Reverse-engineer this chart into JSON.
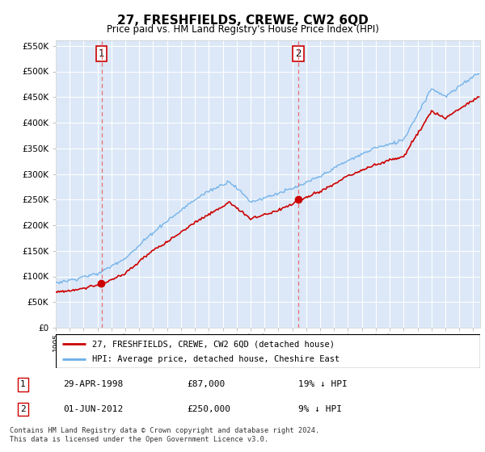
{
  "title": "27, FRESHFIELDS, CREWE, CW2 6QD",
  "subtitle": "Price paid vs. HM Land Registry's House Price Index (HPI)",
  "hpi_label": "HPI: Average price, detached house, Cheshire East",
  "property_label": "27, FRESHFIELDS, CREWE, CW2 6QD (detached house)",
  "sale1_date": "29-APR-1998",
  "sale1_price": 87000,
  "sale1_note": "19% ↓ HPI",
  "sale2_date": "01-JUN-2012",
  "sale2_price": 250000,
  "sale2_note": "9% ↓ HPI",
  "sale1_year": 1998.29,
  "sale2_year": 2012.42,
  "ylim_min": 0,
  "ylim_max": 560000,
  "xlim_min": 1995,
  "xlim_max": 2025.5,
  "background_color": "#dce8f7",
  "fig_bg": "#ffffff",
  "hpi_color": "#6aaee8",
  "property_color": "#cc0000",
  "vline_color": "#e87070",
  "grid_color": "#ffffff",
  "footer": "Contains HM Land Registry data © Crown copyright and database right 2024.\nThis data is licensed under the Open Government Licence v3.0."
}
